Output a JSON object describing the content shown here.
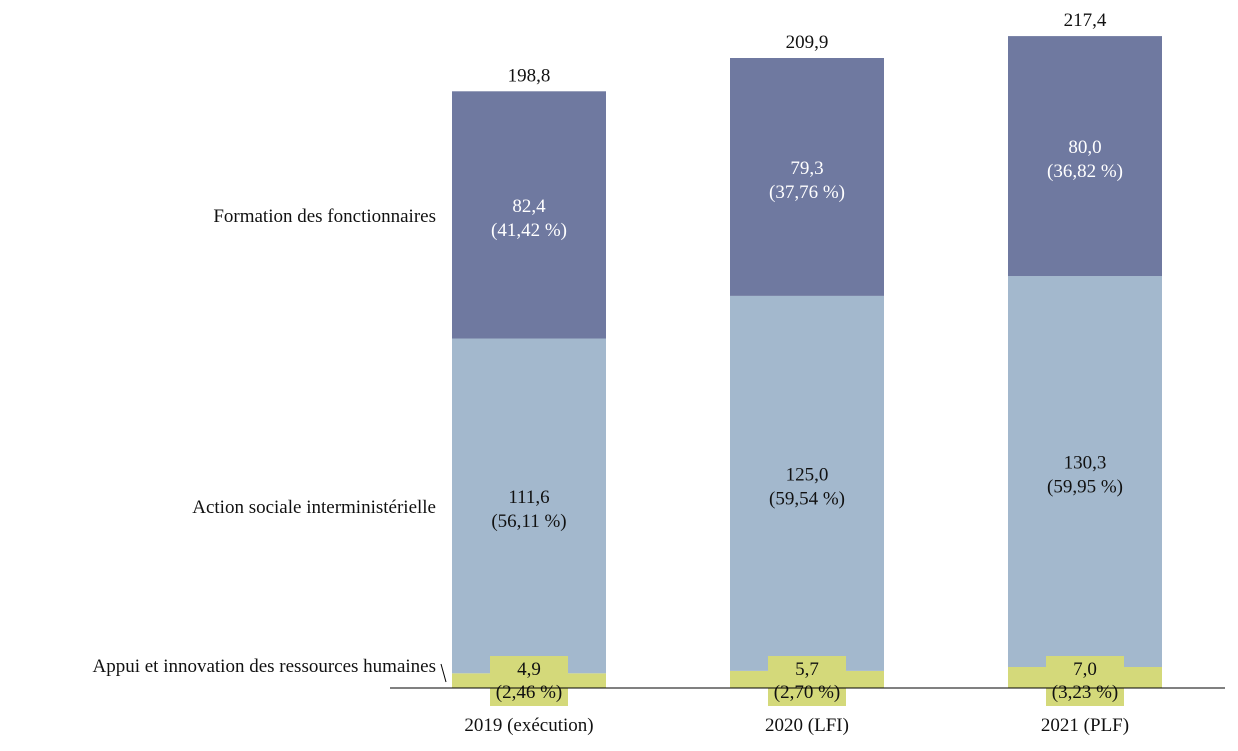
{
  "chart_data": {
    "type": "bar",
    "stacked": true,
    "categories": [
      "2019 (exécution)",
      "2020 (LFI)",
      "2021 (PLF)"
    ],
    "series": [
      {
        "name": "Appui et innovation des ressources humaines",
        "values": [
          4.9,
          5.7,
          7.0
        ],
        "value_labels": [
          "4,9",
          "5,7",
          "7,0"
        ],
        "share_labels": [
          "(2,46 %)",
          "(2,70 %)",
          "(3,23 %)"
        ],
        "color": "#d4d97a"
      },
      {
        "name": "Action sociale interministérielle",
        "values": [
          111.6,
          125.0,
          130.3
        ],
        "value_labels": [
          "111,6",
          "125,0",
          "130,3"
        ],
        "share_labels": [
          "(56,11 %)",
          "(59,54 %)",
          "(59,95 %)"
        ],
        "color": "#a3b8cd"
      },
      {
        "name": "Formation des fonctionnaires",
        "values": [
          82.4,
          79.3,
          80.0
        ],
        "value_labels": [
          "82,4",
          "79,3",
          "80,0"
        ],
        "share_labels": [
          "(41,42 %)",
          "(37,76 %)",
          "(36,82 %)"
        ],
        "color": "#6f79a0"
      }
    ],
    "totals": [
      198.8,
      209.9,
      217.4
    ],
    "total_labels": [
      "198,8",
      "209,9",
      "217,4"
    ],
    "title": "",
    "xlabel": "",
    "ylabel": "",
    "ylim": [
      0,
      220
    ],
    "grid": false,
    "legend": "left"
  }
}
